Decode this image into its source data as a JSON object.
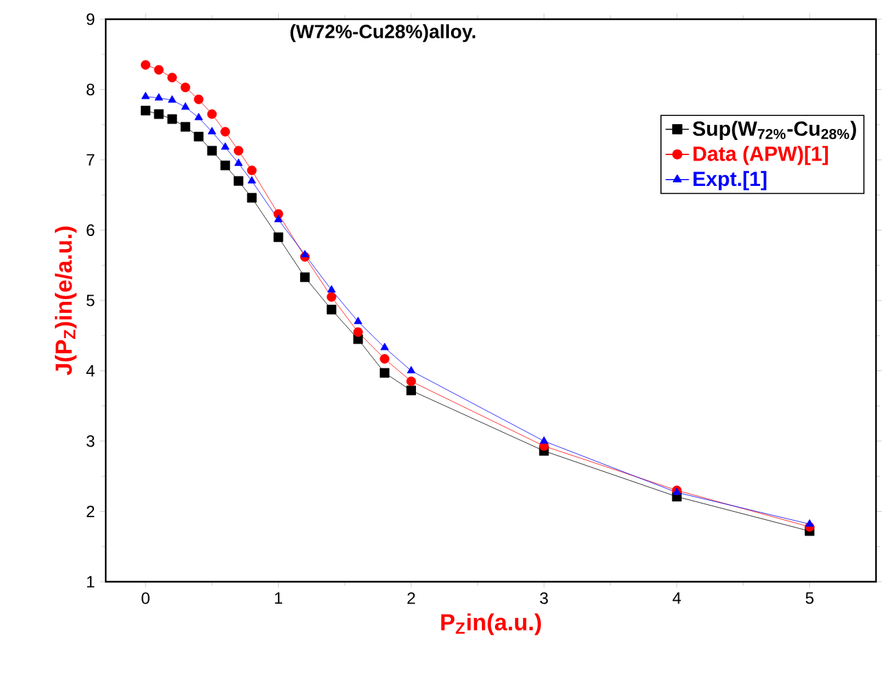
{
  "chart_data": {
    "type": "line",
    "title": "(W72%-Cu28%)alloy.",
    "xlabel": "P$_{Z}$in(a.u.)",
    "ylabel": "J(P$_{Z}$)in(e/a.u.)",
    "x": [
      0,
      0.1,
      0.2,
      0.3,
      0.4,
      0.5,
      0.6,
      0.7,
      0.8,
      1,
      1.2,
      1.4,
      1.6,
      1.8,
      2,
      3,
      4,
      5
    ],
    "series": [
      {
        "name": "Sup(W$_{72%}$-Cu$_{28%}$)",
        "color": "#000000",
        "marker": "square",
        "values": [
          7.7,
          7.65,
          7.58,
          7.47,
          7.33,
          7.13,
          6.92,
          6.7,
          6.46,
          5.9,
          5.33,
          4.87,
          4.45,
          3.97,
          3.72,
          2.86,
          2.21,
          1.72
        ]
      },
      {
        "name": "Data (APW)[1]",
        "color": "#ff0000",
        "marker": "circle",
        "values": [
          8.35,
          8.28,
          8.17,
          8.03,
          7.86,
          7.65,
          7.4,
          7.13,
          6.85,
          6.23,
          5.62,
          5.05,
          4.55,
          4.17,
          3.85,
          2.93,
          2.3,
          1.78
        ]
      },
      {
        "name": "Expt.[1]",
        "color": "#0000ff",
        "marker": "triangle",
        "values": [
          7.9,
          7.88,
          7.85,
          7.75,
          7.6,
          7.4,
          7.18,
          6.95,
          6.7,
          6.15,
          5.65,
          5.15,
          4.7,
          4.33,
          4.0,
          3.0,
          2.27,
          1.82
        ]
      }
    ],
    "xlim": [
      -0.3,
      5.5
    ],
    "ylim": [
      1,
      9
    ],
    "xticks": [
      0,
      1,
      2,
      3,
      4,
      5
    ],
    "yticks": [
      1,
      2,
      3,
      4,
      5,
      6,
      7,
      8,
      9
    ],
    "grid": false,
    "legend": "top right",
    "line_style": "solid"
  }
}
